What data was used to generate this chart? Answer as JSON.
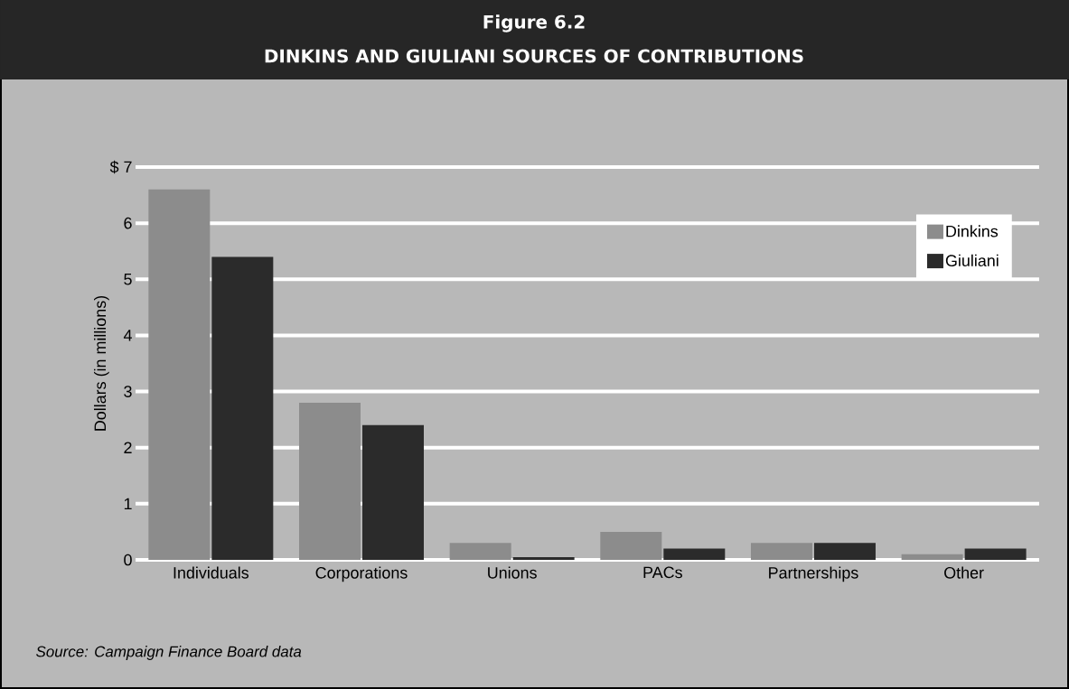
{
  "chart_data": {
    "type": "bar",
    "title": "Figure 6.2",
    "subtitle": "DINKINS AND GIULIANI SOURCES OF CONTRIBUTIONS",
    "ylabel": "Dollars (in millions)",
    "categories": [
      "Individuals",
      "Corporations",
      "Unions",
      "PACs",
      "Partnerships",
      "Other"
    ],
    "series": [
      {
        "name": "Dinkins",
        "color": "#8c8c8c",
        "values": [
          6.6,
          2.8,
          0.3,
          0.5,
          0.3,
          0.1
        ]
      },
      {
        "name": "Giuliani",
        "color": "#2b2b2b",
        "values": [
          5.4,
          2.4,
          0.05,
          0.2,
          0.3,
          0.2
        ]
      }
    ],
    "ylim": [
      0,
      7
    ],
    "yticks": [
      0,
      1,
      2,
      3,
      4,
      5,
      6,
      {
        "value": 7,
        "label": "$ 7"
      }
    ],
    "grid": "y",
    "legend": "top right",
    "annotations": [
      "Source: Campaign Finance Board data"
    ]
  }
}
